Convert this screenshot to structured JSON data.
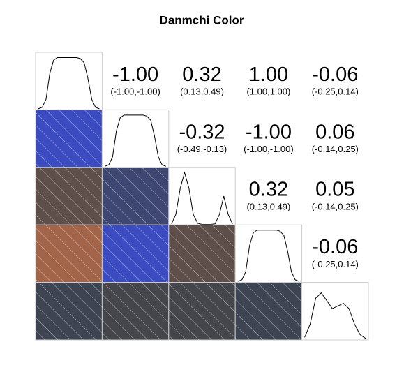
{
  "chart_data": {
    "type": "correlation_matrix",
    "title": "Danmchi Color",
    "correlations": [
      [
        -1,
        0.32,
        1,
        -0.06
      ],
      [
        -0.32,
        -1,
        0.06
      ],
      [
        0.32,
        0.05
      ],
      [
        -0.06
      ]
    ],
    "r_labels": [
      [
        "-1.00",
        "0.32",
        "1.00",
        "-0.06"
      ],
      [
        "-0.32",
        "-1.00",
        "0.06"
      ],
      [
        "0.32",
        "0.05"
      ],
      [
        "-0.06"
      ]
    ],
    "ci_labels": [
      [
        "(-1.00,-1.00)",
        "(0.13,0.49)",
        "(1.00,1.00)",
        "(-0.25,0.14)"
      ],
      [
        "(-0.49,-0.13)",
        "(-1.00,-1.00)",
        "(-0.14,0.25)"
      ],
      [
        "(0.13,0.49)",
        "(-0.14,0.25)"
      ],
      [
        "(-0.25,0.14)"
      ]
    ],
    "densities": [
      [
        0.02,
        0.05,
        0.2,
        0.7,
        0.95,
        1,
        1,
        1,
        1,
        1,
        1,
        0.98,
        0.9,
        0.6,
        0.2,
        0.05,
        0.02
      ],
      [
        0.02,
        0.05,
        0.2,
        0.7,
        0.95,
        1,
        1,
        1,
        1,
        1,
        1,
        0.98,
        0.9,
        0.6,
        0.2,
        0.05,
        0.02
      ],
      [
        0.02,
        0.2,
        0.7,
        1,
        0.7,
        0.2,
        0.03,
        0.01,
        0.01,
        0.01,
        0.02,
        0.2,
        0.55,
        0.2,
        0.02
      ],
      [
        0.02,
        0.05,
        0.2,
        0.7,
        0.95,
        1,
        1,
        1,
        1,
        1,
        1,
        0.98,
        0.9,
        0.6,
        0.2,
        0.05,
        0.02
      ],
      [
        0.05,
        0.3,
        0.8,
        0.9,
        0.75,
        0.6,
        0.65,
        0.7,
        0.6,
        0.3,
        0.1,
        0.03
      ]
    ],
    "density_ylim": [
      0,
      1.1
    ],
    "colors": {
      "negative": "#3b4cc0",
      "zero": "#3f444c",
      "positive": "#a3654a"
    }
  }
}
